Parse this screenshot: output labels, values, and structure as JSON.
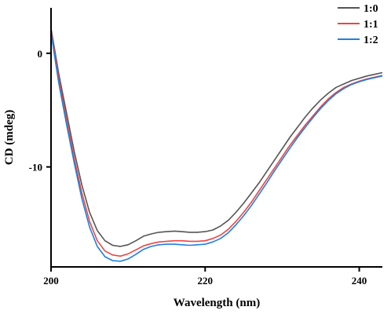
{
  "chart_data": {
    "type": "line",
    "title": "",
    "xlabel": "Wavelength (nm)",
    "ylabel": "CD (mdeg)",
    "xlim": [
      200,
      243
    ],
    "ylim": [
      -18.8,
      4
    ],
    "xticks": [
      200,
      220,
      240
    ],
    "yticks": [
      0,
      -10
    ],
    "grid": false,
    "legend_position": "top-right",
    "series": [
      {
        "name": "1:0",
        "color": "#555555",
        "x": [
          200,
          201,
          202,
          203,
          204,
          205,
          206,
          207,
          208,
          209,
          210,
          211,
          212,
          213,
          214,
          215,
          216,
          217,
          218,
          219,
          220,
          221,
          222,
          223,
          224,
          225,
          226,
          227,
          228,
          229,
          230,
          231,
          232,
          233,
          234,
          235,
          236,
          237,
          238,
          239,
          240,
          241,
          242,
          243
        ],
        "y": [
          2.2,
          -1.8,
          -5.2,
          -8.6,
          -11.6,
          -14.0,
          -15.6,
          -16.5,
          -16.9,
          -17.0,
          -16.85,
          -16.5,
          -16.1,
          -15.9,
          -15.75,
          -15.7,
          -15.65,
          -15.7,
          -15.75,
          -15.75,
          -15.7,
          -15.55,
          -15.2,
          -14.7,
          -14.0,
          -13.2,
          -12.3,
          -11.4,
          -10.4,
          -9.4,
          -8.4,
          -7.4,
          -6.5,
          -5.6,
          -4.8,
          -4.1,
          -3.5,
          -3.0,
          -2.7,
          -2.4,
          -2.2,
          -2.0,
          -1.85,
          -1.7
        ]
      },
      {
        "name": "1:1",
        "color": "#ee4444",
        "x": [
          200,
          201,
          202,
          203,
          204,
          205,
          206,
          207,
          208,
          209,
          210,
          211,
          212,
          213,
          214,
          215,
          216,
          217,
          218,
          219,
          220,
          221,
          222,
          223,
          224,
          225,
          226,
          227,
          228,
          229,
          230,
          231,
          232,
          233,
          234,
          235,
          236,
          237,
          238,
          239,
          240,
          241,
          242,
          243
        ],
        "y": [
          2.0,
          -2.2,
          -5.8,
          -9.2,
          -12.3,
          -14.8,
          -16.5,
          -17.4,
          -17.75,
          -17.85,
          -17.65,
          -17.3,
          -16.95,
          -16.75,
          -16.6,
          -16.55,
          -16.5,
          -16.5,
          -16.55,
          -16.55,
          -16.5,
          -16.3,
          -16.0,
          -15.5,
          -14.8,
          -14.0,
          -13.1,
          -12.1,
          -11.1,
          -10.1,
          -9.1,
          -8.1,
          -7.2,
          -6.3,
          -5.5,
          -4.7,
          -4.0,
          -3.45,
          -3.0,
          -2.7,
          -2.45,
          -2.25,
          -2.1,
          -1.95
        ]
      },
      {
        "name": "1:2",
        "color": "#1f7fe0",
        "x": [
          200,
          201,
          202,
          203,
          204,
          205,
          206,
          207,
          208,
          209,
          210,
          211,
          212,
          213,
          214,
          215,
          216,
          217,
          218,
          219,
          220,
          221,
          222,
          223,
          224,
          225,
          226,
          227,
          228,
          229,
          230,
          231,
          232,
          233,
          234,
          235,
          236,
          237,
          238,
          239,
          240,
          241,
          242,
          243
        ],
        "y": [
          1.8,
          -2.6,
          -6.2,
          -9.6,
          -12.8,
          -15.3,
          -17.0,
          -17.9,
          -18.25,
          -18.3,
          -18.1,
          -17.7,
          -17.25,
          -17.0,
          -16.85,
          -16.8,
          -16.8,
          -16.85,
          -16.9,
          -16.85,
          -16.8,
          -16.6,
          -16.3,
          -15.8,
          -15.1,
          -14.3,
          -13.4,
          -12.4,
          -11.4,
          -10.35,
          -9.35,
          -8.35,
          -7.4,
          -6.5,
          -5.65,
          -4.85,
          -4.15,
          -3.55,
          -3.1,
          -2.75,
          -2.5,
          -2.3,
          -2.15,
          -2.0
        ]
      }
    ]
  }
}
